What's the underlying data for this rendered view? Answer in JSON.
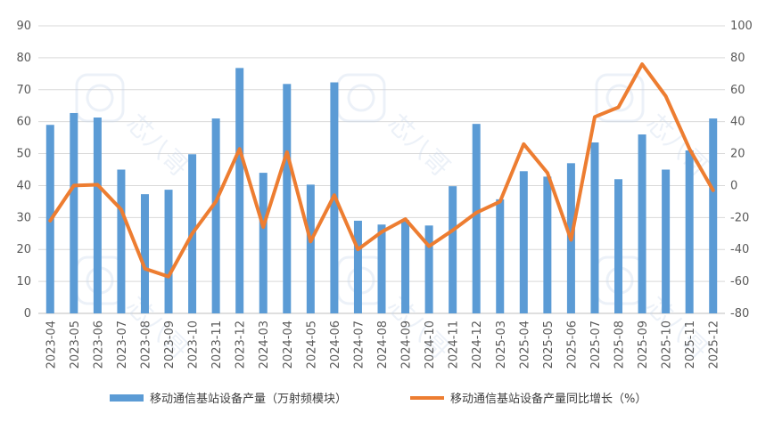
{
  "chart_data": {
    "type": "bar+line",
    "categories": [
      "2023-04",
      "2023-05",
      "2023-06",
      "2023-07",
      "2023-08",
      "2023-09",
      "2023-10",
      "2023-11",
      "2023-12",
      "2024-03",
      "2024-04",
      "2024-05",
      "2024-06",
      "2024-07",
      "2024-08",
      "2024-09",
      "2024-10",
      "2024-11",
      "2024-12",
      "2025-03",
      "2025-04",
      "2025-05",
      "2025-06",
      "2025-07",
      "2025-08",
      "2025-09",
      "2025-10",
      "2025-11",
      "2025-12"
    ],
    "series": [
      {
        "name": "移动通信基站设备产量（万射频模块）",
        "type": "bar",
        "axis": "left",
        "color": "#5b9bd5",
        "values": [
          59,
          62.7,
          61.3,
          45,
          37.3,
          38.7,
          49.8,
          61,
          76.8,
          44,
          71.8,
          40.3,
          72.3,
          29,
          27.8,
          29.2,
          27.5,
          39.8,
          59.3,
          35.7,
          44.5,
          42.8,
          47,
          53.5,
          42,
          56,
          45,
          51,
          61
        ]
      },
      {
        "name": "移动通信基站设备产量同比增长（%）",
        "type": "line",
        "axis": "right",
        "color": "#ed7d31",
        "values": [
          -22,
          0,
          0.5,
          -15,
          -52,
          -57,
          -30,
          -10,
          23,
          -26,
          21,
          -35,
          -6,
          -40,
          -29,
          -21,
          -38,
          -28,
          -17,
          -10,
          26,
          8,
          -34,
          43,
          49,
          76,
          56,
          23,
          -3
        ]
      }
    ],
    "y_left": {
      "min": 0,
      "max": 90,
      "step": 10,
      "ticks": [
        "0",
        "10",
        "20",
        "30",
        "40",
        "50",
        "60",
        "70",
        "80",
        "90"
      ]
    },
    "y_right": {
      "min": -80,
      "max": 100,
      "step": 20,
      "ticks": [
        "-80",
        "-60",
        "-40",
        "-20",
        "0",
        "20",
        "40",
        "60",
        "80",
        "100"
      ]
    },
    "grid": true,
    "legend_position": "bottom",
    "watermark": "芯八哥"
  }
}
